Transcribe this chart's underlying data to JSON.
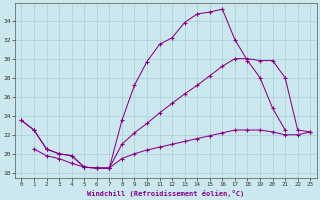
{
  "xlabel": "Windchill (Refroidissement éolien,°C)",
  "background_color": "#cce8ef",
  "grid_color": "#aacdd6",
  "line_color": "#880088",
  "xlim": [
    -0.5,
    23.5
  ],
  "ylim": [
    17.5,
    35.8
  ],
  "yticks": [
    18,
    20,
    22,
    24,
    26,
    28,
    30,
    32,
    34
  ],
  "xticks": [
    0,
    1,
    2,
    3,
    4,
    5,
    6,
    7,
    8,
    9,
    10,
    11,
    12,
    13,
    14,
    15,
    16,
    17,
    18,
    19,
    20,
    21,
    22,
    23
  ],
  "line_top_x": [
    0,
    1,
    2,
    3,
    4,
    5,
    6,
    7,
    8,
    9,
    10,
    11,
    12,
    13,
    14,
    15,
    16,
    17,
    18,
    19,
    20,
    21
  ],
  "line_top_y": [
    23.5,
    22.5,
    20.5,
    20.0,
    19.8,
    18.6,
    18.5,
    18.5,
    23.5,
    27.2,
    29.7,
    31.5,
    32.2,
    33.8,
    34.7,
    34.9,
    35.2,
    32.0,
    29.8,
    28.0,
    24.8,
    22.5
  ],
  "line_mid_x": [
    0,
    1,
    2,
    3,
    4,
    5,
    6,
    7,
    8,
    9,
    10,
    11,
    12,
    13,
    14,
    15,
    16,
    17,
    18,
    19,
    20,
    21,
    22,
    23
  ],
  "line_mid_y": [
    23.5,
    22.5,
    20.5,
    20.0,
    19.8,
    18.6,
    18.5,
    18.5,
    21.0,
    22.2,
    23.2,
    24.3,
    25.3,
    26.3,
    27.2,
    28.2,
    29.2,
    30.0,
    30.0,
    29.8,
    29.8,
    28.0,
    22.5,
    22.3
  ],
  "line_bot_x": [
    1,
    2,
    3,
    4,
    5,
    6,
    7,
    8,
    9,
    10,
    11,
    12,
    13,
    14,
    15,
    16,
    17,
    18,
    19,
    20,
    21,
    22,
    23
  ],
  "line_bot_y": [
    20.5,
    19.8,
    19.5,
    19.0,
    18.6,
    18.5,
    18.5,
    19.5,
    20.0,
    20.4,
    20.7,
    21.0,
    21.3,
    21.6,
    21.9,
    22.2,
    22.5,
    22.5,
    22.5,
    22.3,
    22.0,
    22.0,
    22.3
  ]
}
